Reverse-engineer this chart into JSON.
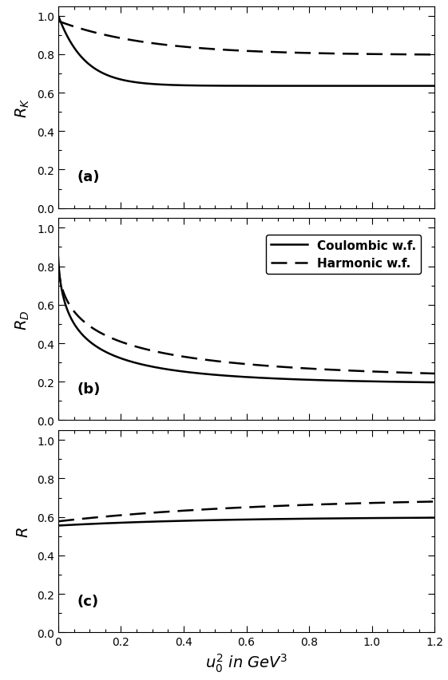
{
  "x_max": 1.2,
  "xlabel": "$u_0^2$ in GeV$^3$",
  "panels": [
    {
      "label": "(a)",
      "ylabel": "$R_K$",
      "ylim": [
        0,
        1.05
      ],
      "yticks": [
        0,
        0.2,
        0.4,
        0.6,
        0.8,
        1.0
      ],
      "legend": false
    },
    {
      "label": "(b)",
      "ylabel": "$R_D$",
      "ylim": [
        0,
        1.05
      ],
      "yticks": [
        0,
        0.2,
        0.4,
        0.6,
        0.8,
        1.0
      ],
      "legend": true
    },
    {
      "label": "(c)",
      "ylabel": "$R$",
      "ylim": [
        0,
        1.05
      ],
      "yticks": [
        0,
        0.2,
        0.4,
        0.6,
        0.8,
        1.0
      ],
      "legend": false
    }
  ],
  "legend_labels": [
    "Coulombic w.f.",
    "Harmonic w.f."
  ],
  "line_color": "#000000",
  "background_color": "#ffffff"
}
